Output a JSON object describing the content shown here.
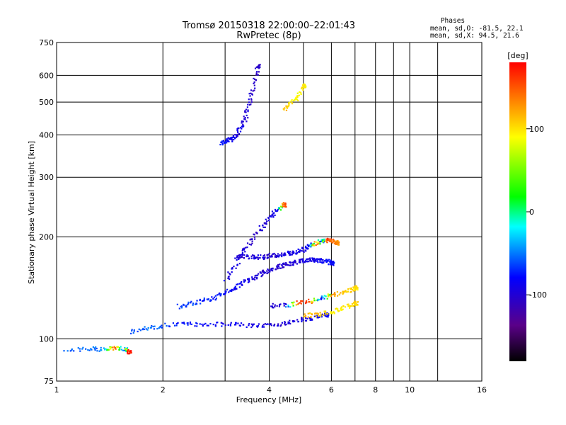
{
  "chart_data": {
    "type": "scatter",
    "title": "Tromsø 20150318 22:00:00–22:01:43",
    "subtitle": "RwPretec (8p)",
    "xlabel": "Frequency [MHz]",
    "ylabel": "Stationary phase Virtual Height [km]",
    "x_scale": "log",
    "y_scale": "log",
    "xlim": [
      1,
      16
    ],
    "ylim": [
      75,
      750
    ],
    "x_ticks": [
      1,
      2,
      4,
      6,
      8,
      10,
      16
    ],
    "y_ticks": [
      75,
      100,
      200,
      300,
      400,
      500,
      600,
      750
    ],
    "x_gridlines": [
      2,
      3,
      4,
      5,
      6,
      7,
      8,
      9,
      10,
      12
    ],
    "y_gridlines": [
      100,
      200,
      300,
      400,
      500,
      600
    ],
    "grid": true,
    "phases_box": {
      "heading": "Phases",
      "line_o": "mean, sd,O: -81.5, 22.1",
      "line_x": "mean, sd,X:  94.5, 21.6"
    },
    "colorbar": {
      "label": "[deg]",
      "range": [
        -180,
        180
      ],
      "ticks": [
        100,
        0,
        -100
      ],
      "colors": [
        "#000000",
        "#5a0088",
        "#0000ff",
        "#00ffff",
        "#00ff00",
        "#ffff00",
        "#ff0000"
      ]
    },
    "series": [
      {
        "note": "sample traces; phase in degrees controls color",
        "points_desc": "multiple clusters",
        "clusters": [
          {
            "x": [
              1.05,
              1.25,
              1.35,
              1.45,
              1.55,
              1.6
            ],
            "y": [
              93,
              94,
              93,
              95,
              94,
              92
            ],
            "phase": [
              -60,
              -55,
              -50,
              160,
              -60,
              170
            ]
          },
          {
            "x": [
              1.6,
              1.8,
              2.0,
              2.3,
              2.6,
              3.0,
              3.4,
              3.8,
              4.2,
              4.6,
              5.0,
              5.4,
              5.8
            ],
            "y": [
              105,
              108,
              110,
              111,
              111,
              111,
              110,
              110,
              111,
              113,
              115,
              116,
              118
            ],
            "phase": [
              -60,
              -55,
              -60,
              -75,
              -80,
              -85,
              -90,
              -95,
              -100,
              -100,
              -95,
              -90,
              -85
            ]
          },
          {
            "x": [
              2.2,
              2.4,
              2.6,
              2.8,
              3.0,
              3.2,
              3.4,
              3.6,
              3.8,
              4.0,
              4.2,
              4.4,
              4.6,
              4.8,
              5.0,
              5.2,
              5.4,
              5.6,
              5.8,
              6.0
            ],
            "y": [
              125,
              128,
              130,
              133,
              138,
              142,
              148,
              152,
              157,
              160,
              163,
              166,
              168,
              170,
              171,
              172,
              172,
              171,
              170,
              168
            ],
            "phase": [
              -60,
              -65,
              -70,
              -75,
              -80,
              -85,
              -90,
              -95,
              -100,
              -100,
              -105,
              -100,
              -100,
              -95,
              -95,
              -90,
              -90,
              -85,
              -80,
              -80
            ]
          },
          {
            "x": [
              3.0,
              3.2,
              3.4,
              3.6,
              3.8,
              4.0,
              4.2,
              4.4
            ],
            "y": [
              150,
              165,
              185,
              200,
              215,
              230,
              240,
              250
            ],
            "phase": [
              -90,
              -95,
              -100,
              -105,
              -100,
              -95,
              -90,
              150
            ]
          },
          {
            "x": [
              3.2,
              3.4,
              3.6,
              3.8,
              4.0,
              4.2,
              4.4,
              4.6,
              4.8,
              5.0,
              5.2,
              5.4,
              5.6,
              5.8,
              6.0,
              6.2
            ],
            "y": [
              175,
              176,
              175,
              175,
              177,
              178,
              178,
              180,
              182,
              185,
              190,
              193,
              195,
              196,
              195,
              193
            ],
            "phase": [
              -100,
              -100,
              -95,
              -95,
              -100,
              -100,
              -95,
              -95,
              -90,
              -90,
              -85,
              150,
              -80,
              160,
              140,
              130
            ]
          },
          {
            "x": [
              4.0,
              4.4,
              4.8,
              5.2,
              5.6,
              6.0,
              6.4,
              6.8,
              7.0
            ],
            "y": [
              126,
              126,
              128,
              130,
              132,
              135,
              138,
              140,
              142
            ],
            "phase": [
              -100,
              -100,
              160,
              150,
              -95,
              130,
              110,
              105,
              100
            ]
          },
          {
            "x": [
              5.0,
              5.4,
              5.8,
              6.2,
              6.6,
              7.0
            ],
            "y": [
              118,
              118,
              120,
              122,
              125,
              128
            ],
            "phase": [
              110,
              115,
              100,
              95,
              100,
              105
            ]
          },
          {
            "x": [
              2.9,
              3.0,
              3.1,
              3.2,
              3.3,
              3.4,
              3.5,
              3.6,
              3.7
            ],
            "y": [
              380,
              385,
              390,
              400,
              420,
              450,
              500,
              560,
              640
            ],
            "phase": [
              -70,
              -80,
              -85,
              -90,
              -95,
              -100,
              -100,
              -105,
              -105
            ]
          },
          {
            "x": [
              4.4,
              4.6,
              4.8,
              5.0
            ],
            "y": [
              480,
              500,
              520,
              560
            ],
            "phase": [
              110,
              100,
              90,
              95
            ]
          }
        ]
      }
    ]
  }
}
